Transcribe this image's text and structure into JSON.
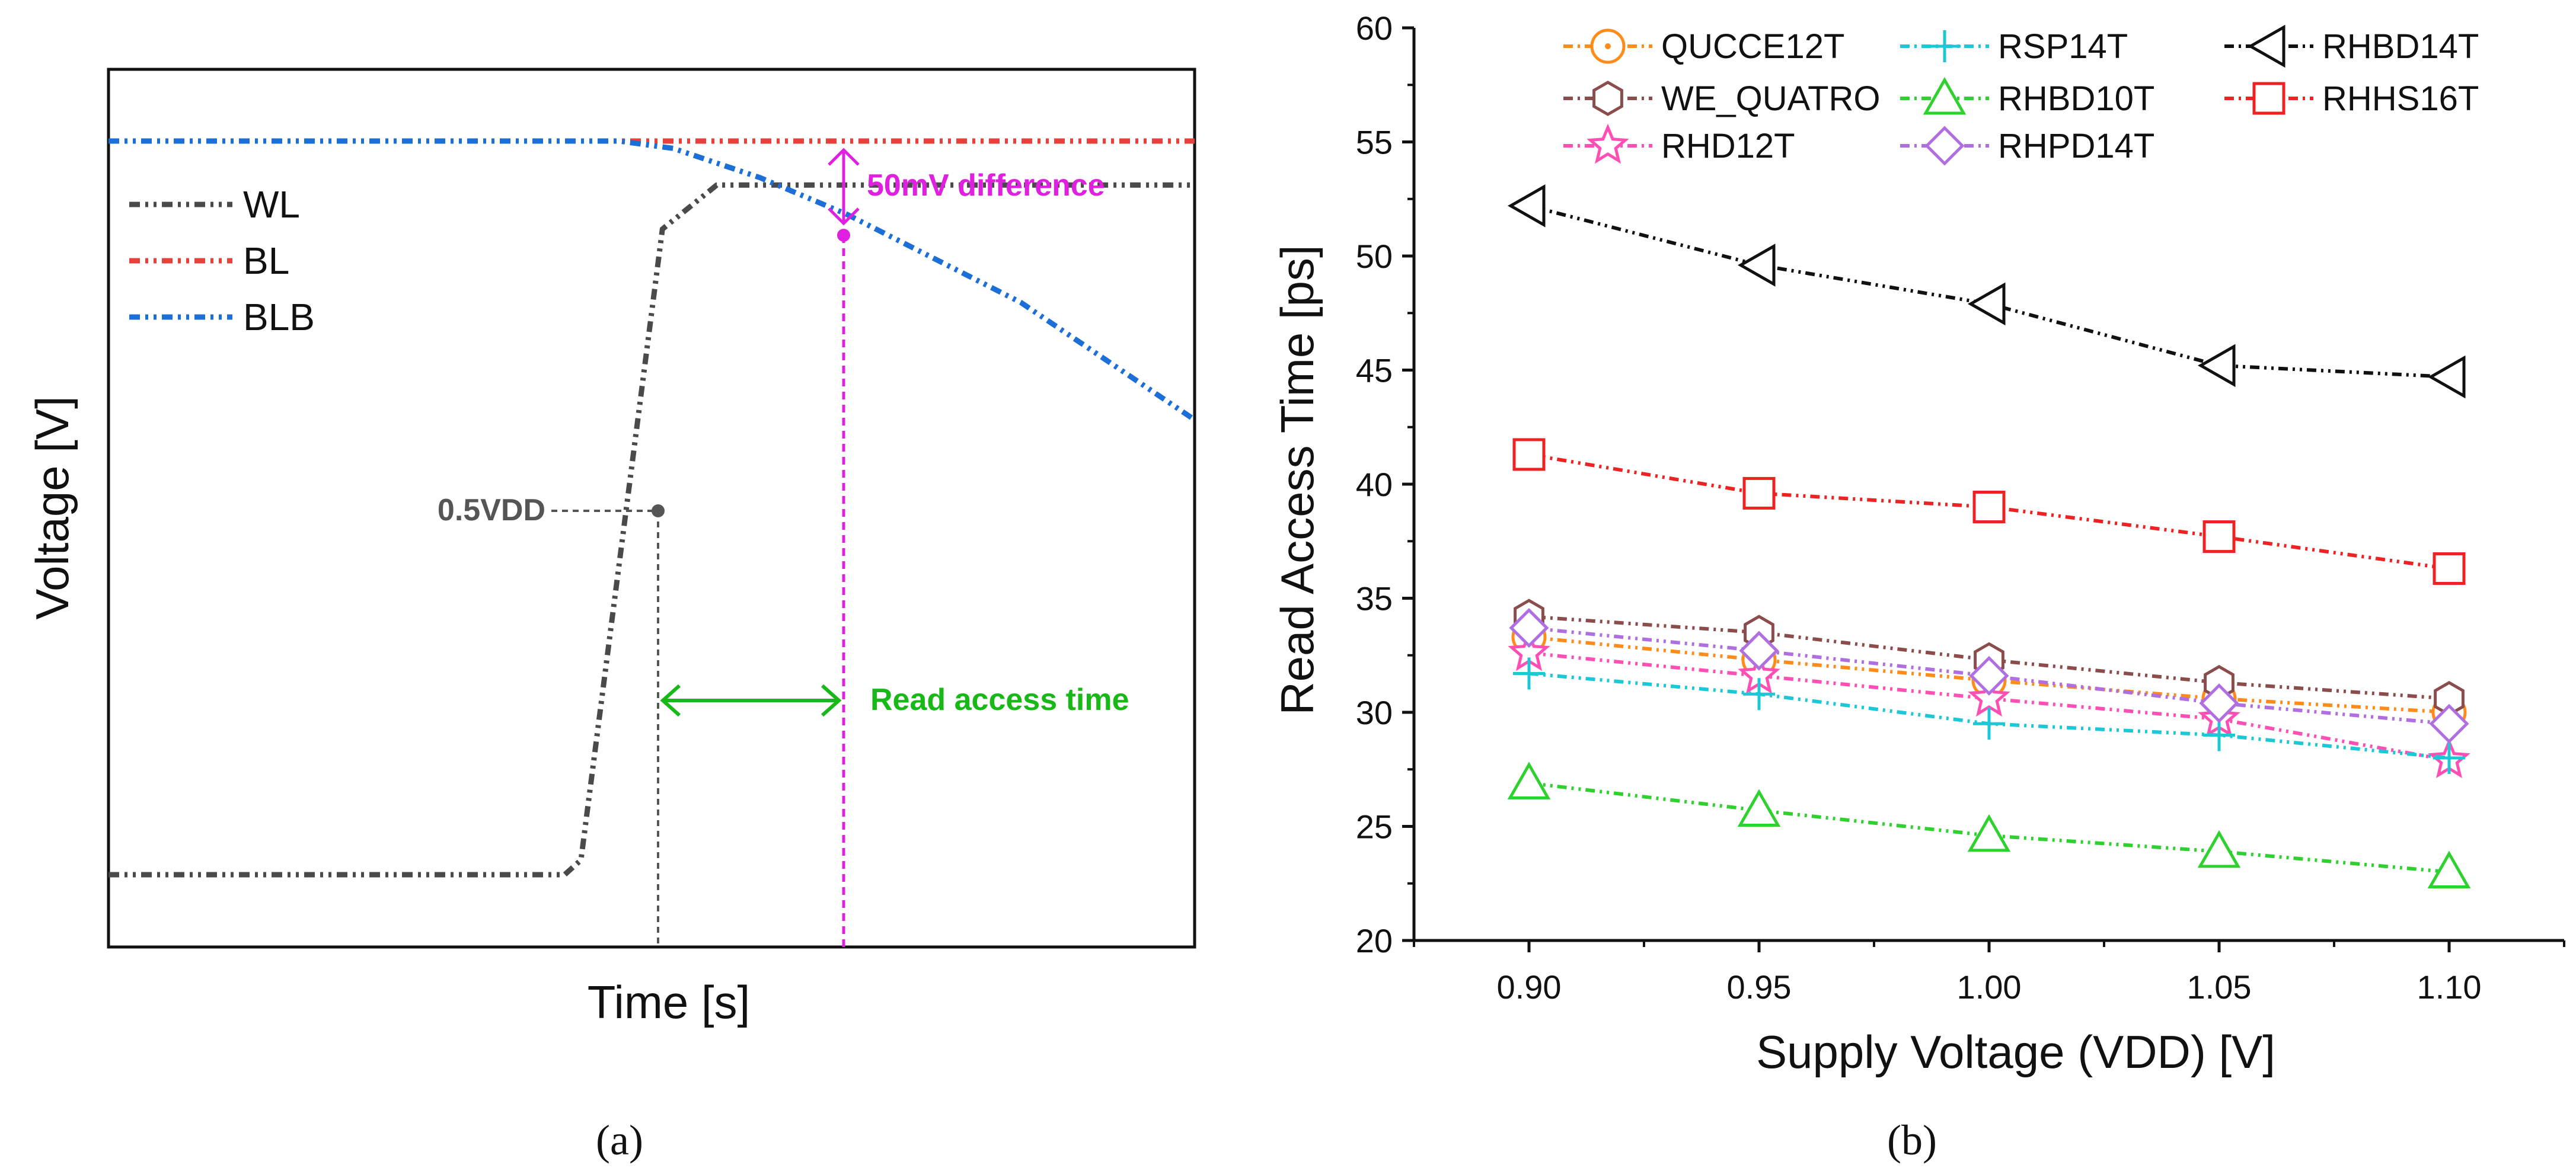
{
  "panels": {
    "a": "(a)",
    "b": "(b)"
  },
  "chart_data": [
    {
      "type": "line",
      "panel": "a",
      "xlabel": "Time [s]",
      "ylabel": "Voltage [V]",
      "grid": false,
      "legend_placement": "top-left",
      "series": [
        {
          "name": "WL",
          "color": "#4a4a4a",
          "x": [
            0,
            42,
            43.5,
            51,
            56,
            100
          ],
          "y": [
            0,
            0,
            2,
            88,
            94,
            94
          ]
        },
        {
          "name": "BL",
          "color": "#e8413c",
          "x": [
            0,
            100
          ],
          "y": [
            100,
            100
          ]
        },
        {
          "name": "BLB",
          "color": "#1c6fd6",
          "x": [
            0,
            47,
            52,
            60,
            68,
            84,
            100
          ],
          "y": [
            100,
            100,
            99,
            95,
            90,
            78,
            62
          ]
        }
      ],
      "annotations": [
        {
          "text": "0.5VDD",
          "color": "#555555"
        },
        {
          "text": "50mV difference",
          "color": "#e020e0"
        },
        {
          "text": "Read access time",
          "color": "#19b819"
        }
      ]
    },
    {
      "type": "line",
      "panel": "b",
      "xlabel": "Supply Voltage (VDD) [V]",
      "ylabel": "Read Access Time [ps]",
      "xlim": [
        0.875,
        1.125
      ],
      "ylim": [
        20,
        60
      ],
      "x_ticks": [
        "0.90",
        "0.95",
        "1.00",
        "1.05",
        "1.10"
      ],
      "y_ticks": [
        "20",
        "25",
        "30",
        "35",
        "40",
        "45",
        "50",
        "55",
        "60"
      ],
      "grid": false,
      "legend_placement": "top",
      "x": [
        0.9,
        0.95,
        1.0,
        1.05,
        1.1
      ],
      "series": [
        {
          "name": "QUCCE12T",
          "marker": "circle",
          "color": "#ff8c1a",
          "values": [
            33.3,
            32.3,
            31.4,
            30.6,
            30.0
          ]
        },
        {
          "name": "WE_QUATRO",
          "marker": "hexagon",
          "color": "#8b4c4c",
          "values": [
            34.2,
            33.5,
            32.3,
            31.3,
            30.6
          ]
        },
        {
          "name": "RHD12T",
          "marker": "star",
          "color": "#ff4fb4",
          "values": [
            32.6,
            31.6,
            30.6,
            29.7,
            27.9
          ]
        },
        {
          "name": "RSP14T",
          "marker": "plus",
          "color": "#1cc8d6",
          "values": [
            31.7,
            30.8,
            29.5,
            29.0,
            28.0
          ]
        },
        {
          "name": "RHBD10T",
          "marker": "triangle-up",
          "color": "#2fd12f",
          "values": [
            26.9,
            25.7,
            24.6,
            23.9,
            23.0
          ]
        },
        {
          "name": "RHPD14T",
          "marker": "diamond",
          "color": "#b06fe0",
          "values": [
            33.7,
            32.7,
            31.6,
            30.4,
            29.5
          ]
        },
        {
          "name": "RHBD14T",
          "marker": "triangle-left",
          "color": "#111111",
          "values": [
            52.2,
            49.6,
            47.9,
            45.2,
            44.7
          ]
        },
        {
          "name": "RHHS16T",
          "marker": "square",
          "color": "#ee2222",
          "values": [
            41.3,
            39.6,
            39.0,
            37.7,
            36.3
          ]
        }
      ]
    }
  ]
}
